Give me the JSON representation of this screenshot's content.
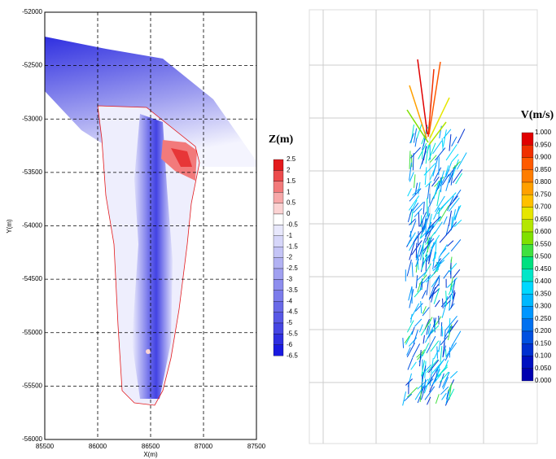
{
  "chart_data": [
    {
      "type": "contour",
      "xlabel": "X(m)",
      "ylabel": "Y(m)",
      "xlim": [
        85500,
        87500
      ],
      "ylim": [
        -56000,
        -52000
      ],
      "xticks": [
        85500,
        86000,
        86500,
        87000,
        87500
      ],
      "yticks": [
        -56000,
        -55500,
        -55000,
        -54500,
        -54000,
        -53500,
        -53000,
        -52500,
        -52000
      ],
      "grid": true,
      "colorbar": {
        "title": "Z(m)",
        "ticks": [
          2.5,
          2,
          1.5,
          1,
          0.5,
          0,
          -0.5,
          -1,
          -1.5,
          -2,
          -2.5,
          -3,
          -3.5,
          -4,
          -4.5,
          -5,
          -5.5,
          -6,
          -6.5
        ],
        "colors": [
          "#e31a1c",
          "#ec4b4d",
          "#f27a7b",
          "#f7a8a9",
          "#fbd3d3",
          "#ffffff",
          "#e8e8fc",
          "#d6d6f9",
          "#c4c4f6",
          "#b2b2f3",
          "#a0a0f0",
          "#8e8eee",
          "#7c7ceb",
          "#6a6ae8",
          "#5858e6",
          "#4646e3",
          "#2f2fe0",
          "#1a1ae0"
        ]
      }
    },
    {
      "type": "vector",
      "colorbar": {
        "title": "V(m/s)",
        "ticks": [
          {
            "value": 1,
            "label": "1.000"
          },
          {
            "value": 0.95,
            "label": "0.950"
          },
          {
            "value": 0.9,
            "label": "0.900"
          },
          {
            "value": 0.85,
            "label": "0.850"
          },
          {
            "value": 0.8,
            "label": "0.800"
          },
          {
            "value": 0.75,
            "label": "0.750"
          },
          {
            "value": 0.7,
            "label": "0.700"
          },
          {
            "value": 0.65,
            "label": "0.650"
          },
          {
            "value": 0.6,
            "label": "0.600"
          },
          {
            "value": 0.55,
            "label": "0.550"
          },
          {
            "value": 0.5,
            "label": "0.500"
          },
          {
            "value": 0.45,
            "label": "0.450"
          },
          {
            "value": 0.4,
            "label": "0.400"
          },
          {
            "value": 0.35,
            "label": "0.350"
          },
          {
            "value": 0.3,
            "label": "0.300"
          },
          {
            "value": 0.25,
            "label": "0.250"
          },
          {
            "value": 0.2,
            "label": "0.200"
          },
          {
            "value": 0.15,
            "label": "0.150"
          },
          {
            "value": 0.1,
            "label": "0.100"
          },
          {
            "value": 0.05,
            "label": "0.050"
          },
          {
            "value": 0,
            "label": "0.000"
          }
        ],
        "colors": [
          "#e00000",
          "#f03000",
          "#ff5a00",
          "#ff7d00",
          "#ffa000",
          "#ffc000",
          "#e6e600",
          "#b4e600",
          "#80e000",
          "#40e040",
          "#00e080",
          "#00e6c8",
          "#00d8ff",
          "#00b8ff",
          "#0096ff",
          "#0070f0",
          "#0050e0",
          "#0030d0",
          "#0010c0",
          "#0000b0"
        ]
      }
    }
  ]
}
